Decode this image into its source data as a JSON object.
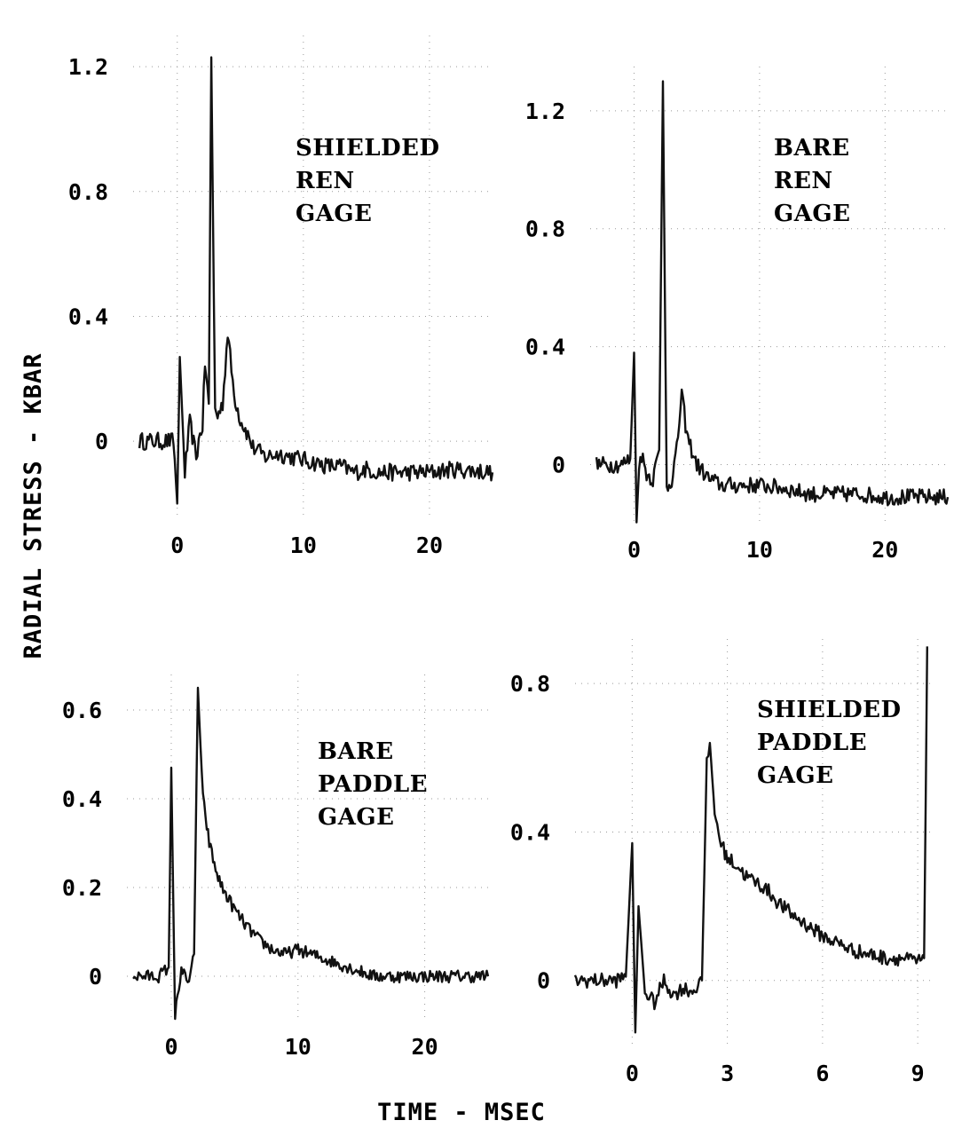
{
  "axes": {
    "y_title": "RADIAL STRESS - KBAR",
    "x_title": "TIME - MSEC"
  },
  "chart_data": [
    {
      "type": "line",
      "title": "",
      "label_lines": [
        "SHIELDED",
        "REN",
        "GAGE"
      ],
      "xlabel": "TIME - MSEC",
      "ylabel": "RADIAL STRESS - KBAR",
      "xlim": [
        -3.5,
        25
      ],
      "ylim": [
        -0.25,
        1.3
      ],
      "xticks": [
        0,
        10,
        20
      ],
      "yticks": [
        0,
        0.4,
        0.8,
        1.2
      ],
      "ytick_labels": [
        "0",
        "0.4",
        "0.8",
        "1.2"
      ],
      "grid": "dotted",
      "series": [
        {
          "x": [
            -3,
            -1,
            -0.3,
            0,
            0.2,
            0.6,
            1.0,
            1.5,
            1.8,
            2.0,
            2.2,
            2.5,
            2.7,
            3.0,
            3.2,
            3.6,
            4.0,
            4.5,
            5.0,
            5.5,
            6.0,
            7.0,
            8.0,
            9.0,
            10,
            11,
            12,
            13,
            14,
            15,
            16,
            18,
            20,
            22,
            25
          ],
          "y": [
            0,
            0,
            0,
            -0.2,
            0.27,
            -0.1,
            0.06,
            -0.05,
            0.02,
            0.05,
            0.25,
            0.12,
            1.23,
            0.1,
            0.08,
            0.12,
            0.35,
            0.15,
            0.07,
            0.03,
            -0.02,
            -0.05,
            -0.04,
            -0.05,
            -0.06,
            -0.07,
            -0.08,
            -0.08,
            -0.1,
            -0.09,
            -0.1,
            -0.1,
            -0.1,
            -0.09,
            -0.1
          ]
        }
      ]
    },
    {
      "type": "line",
      "title": "",
      "label_lines": [
        "BARE",
        "REN",
        "GAGE"
      ],
      "xlabel": "TIME - MSEC",
      "ylabel": "RADIAL STRESS - KBAR",
      "xlim": [
        -3.5,
        25
      ],
      "ylim": [
        -0.2,
        1.35
      ],
      "xticks": [
        0,
        10,
        20
      ],
      "yticks": [
        0,
        0.4,
        0.8,
        1.2
      ],
      "ytick_labels": [
        "0",
        "0.4",
        "0.8",
        "1.2"
      ],
      "grid": "dotted",
      "series": [
        {
          "x": [
            -3,
            -1,
            -0.3,
            0,
            0.2,
            0.5,
            1.0,
            1.5,
            2.0,
            2.3,
            2.6,
            3.0,
            3.4,
            3.8,
            4.2,
            5.0,
            6.0,
            7.0,
            8.0,
            10,
            12,
            14,
            16,
            18,
            20,
            22,
            25
          ],
          "y": [
            0,
            0,
            0.02,
            0.38,
            -0.18,
            0.05,
            -0.03,
            -0.05,
            0.05,
            1.3,
            -0.08,
            -0.05,
            0.05,
            0.24,
            0.1,
            0.0,
            -0.05,
            -0.07,
            -0.07,
            -0.07,
            -0.08,
            -0.1,
            -0.1,
            -0.1,
            -0.11,
            -0.11,
            -0.11
          ]
        }
      ]
    },
    {
      "type": "line",
      "title": "",
      "label_lines": [
        "BARE",
        "PADDLE",
        "GAGE"
      ],
      "xlabel": "TIME - MSEC",
      "ylabel": "RADIAL STRESS - KBAR",
      "xlim": [
        -3.5,
        25
      ],
      "ylim": [
        -0.1,
        0.68
      ],
      "xticks": [
        0,
        10,
        20
      ],
      "yticks": [
        0,
        0.2,
        0.4,
        0.6
      ],
      "ytick_labels": [
        "0",
        "0.2",
        "0.4",
        "0.6"
      ],
      "grid": "dotted",
      "series": [
        {
          "x": [
            -3,
            -1,
            -0.2,
            0,
            0.3,
            0.8,
            1.3,
            1.8,
            2.1,
            2.5,
            3.0,
            3.5,
            4.0,
            5.0,
            6.0,
            7.0,
            8.0,
            9.0,
            10,
            11,
            12,
            13,
            14,
            15,
            16,
            18,
            20,
            22,
            25
          ],
          "y": [
            0,
            0,
            0.02,
            0.47,
            -0.09,
            0.02,
            -0.02,
            0.05,
            0.65,
            0.4,
            0.3,
            0.24,
            0.2,
            0.15,
            0.11,
            0.08,
            0.06,
            0.05,
            0.06,
            0.05,
            0.04,
            0.03,
            0.02,
            0.01,
            0.0,
            0.0,
            0.0,
            0.0,
            0.0
          ]
        }
      ]
    },
    {
      "type": "line",
      "title": "",
      "label_lines": [
        "SHIELDED",
        "PADDLE",
        "GAGE"
      ],
      "xlabel": "TIME - MSEC",
      "ylabel": "RADIAL STRESS - KBAR",
      "xlim": [
        -1.8,
        9.5
      ],
      "ylim": [
        -0.18,
        0.92
      ],
      "xticks": [
        0,
        3,
        6,
        9
      ],
      "yticks": [
        0,
        0.4,
        0.8
      ],
      "ytick_labels": [
        "0",
        "0.4",
        "0.8"
      ],
      "grid": "dotted",
      "series": [
        {
          "x": [
            -1.8,
            -0.5,
            -0.2,
            0,
            0.1,
            0.2,
            0.4,
            0.7,
            1.0,
            1.3,
            1.6,
            1.9,
            2.2,
            2.35,
            2.45,
            2.6,
            2.8,
            3.0,
            3.3,
            3.6,
            4.0,
            4.3,
            4.6,
            5.0,
            5.5,
            6.0,
            6.5,
            7.0,
            7.5,
            8.0,
            8.5,
            9.0,
            9.2,
            9.3
          ],
          "y": [
            0,
            0,
            0.01,
            0.37,
            -0.14,
            0.2,
            -0.03,
            -0.06,
            0.0,
            -0.04,
            -0.02,
            -0.03,
            0.0,
            0.58,
            0.64,
            0.45,
            0.37,
            0.33,
            0.31,
            0.28,
            0.26,
            0.24,
            0.21,
            0.18,
            0.15,
            0.12,
            0.1,
            0.08,
            0.07,
            0.06,
            0.06,
            0.05,
            0.06,
            0.9
          ]
        }
      ]
    }
  ]
}
